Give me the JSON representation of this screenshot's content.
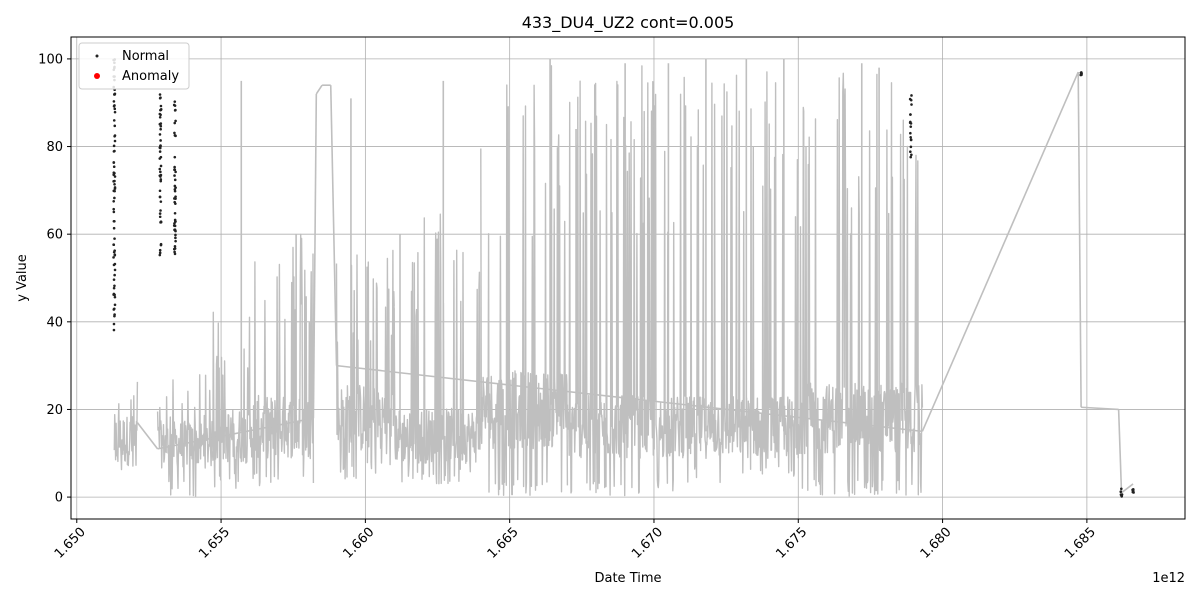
{
  "chart_data": {
    "type": "line",
    "title": "433_DU4_UZ2 cont=0.005",
    "xlabel": "Date Time",
    "ylabel": "y Value",
    "x_offset_label": "1e12",
    "xlim": [
      1.6498,
      1.6884
    ],
    "ylim": [
      -5,
      105
    ],
    "xticks": [
      1.65,
      1.655,
      1.66,
      1.665,
      1.67,
      1.675,
      1.68,
      1.685
    ],
    "xtick_labels": [
      "1.650",
      "1.655",
      "1.660",
      "1.665",
      "1.670",
      "1.675",
      "1.680",
      "1.685"
    ],
    "yticks": [
      0,
      20,
      40,
      60,
      80,
      100
    ],
    "ytick_labels": [
      "0",
      "20",
      "40",
      "60",
      "80",
      "100"
    ],
    "grid": true,
    "legend": {
      "position": "top-left",
      "entries": [
        "Normal",
        "Anomaly"
      ]
    },
    "series": [
      {
        "name": "",
        "kind": "line",
        "color": "#bfbfbf",
        "segments": [
          {
            "x_start": 1.6513,
            "x_end": 1.6521,
            "low": 5,
            "high": 27,
            "base": 13
          },
          {
            "x_start": 1.6528,
            "x_end": 1.6547,
            "low": 0,
            "high": 28,
            "base": 12
          },
          {
            "x_start": 1.6547,
            "x_end": 1.656,
            "low": 2,
            "high": 45,
            "base": 14
          },
          {
            "x_start": 1.656,
            "x_end": 1.6582,
            "low": 2,
            "high": 62,
            "base": 16
          },
          {
            "x_start": 1.659,
            "x_end": 1.661,
            "low": 4,
            "high": 58,
            "base": 18
          },
          {
            "x_start": 1.661,
            "x_end": 1.664,
            "low": 3,
            "high": 66,
            "base": 14
          },
          {
            "x_start": 1.664,
            "x_end": 1.667,
            "low": 0,
            "high": 99,
            "base": 20
          },
          {
            "x_start": 1.667,
            "x_end": 1.671,
            "low": 0,
            "high": 100,
            "base": 16
          },
          {
            "x_start": 1.671,
            "x_end": 1.675,
            "low": 3,
            "high": 100,
            "base": 16
          },
          {
            "x_start": 1.675,
            "x_end": 1.6793,
            "low": 0,
            "high": 99,
            "base": 18
          }
        ],
        "points": [
          [
            1.6521,
            17
          ],
          [
            1.6528,
            11
          ],
          [
            1.6582,
            18
          ],
          [
            1.6583,
            92
          ],
          [
            1.6585,
            94
          ],
          [
            1.6588,
            94
          ],
          [
            1.659,
            30
          ],
          [
            1.6793,
            15
          ],
          [
            1.6847,
            97
          ],
          [
            1.6848,
            20.5
          ],
          [
            1.6861,
            20
          ],
          [
            1.6862,
            1
          ],
          [
            1.6866,
            3
          ]
        ],
        "spikes": [
          [
            1.6557,
            95
          ],
          [
            1.6576,
            60
          ],
          [
            1.6595,
            91
          ],
          [
            1.6612,
            60
          ],
          [
            1.6627,
            95
          ],
          [
            1.6664,
            100
          ],
          [
            1.6673,
            84
          ],
          [
            1.669,
            99
          ],
          [
            1.6705,
            99
          ],
          [
            1.6718,
            100
          ],
          [
            1.6732,
            100
          ],
          [
            1.6745,
            100
          ],
          [
            1.6772,
            99
          ],
          [
            1.6778,
            98
          ]
        ]
      },
      {
        "name": "Normal",
        "kind": "scatter",
        "color": "#222222",
        "clusters": [
          {
            "x": 1.6513,
            "y_low": 38,
            "y_high": 100
          },
          {
            "x": 1.6529,
            "y_low": 53,
            "y_high": 92
          },
          {
            "x": 1.6534,
            "y_low": 55,
            "y_high": 92
          },
          {
            "x": 1.6789,
            "y_low": 77,
            "y_high": 92
          },
          {
            "x": 1.6848,
            "y_low": 96,
            "y_high": 97
          },
          {
            "x": 1.6862,
            "y_low": 0,
            "y_high": 2
          },
          {
            "x": 1.6866,
            "y_low": 1,
            "y_high": 2
          }
        ]
      },
      {
        "name": "Anomaly",
        "kind": "scatter",
        "color": "#ff0000",
        "points": []
      }
    ]
  }
}
